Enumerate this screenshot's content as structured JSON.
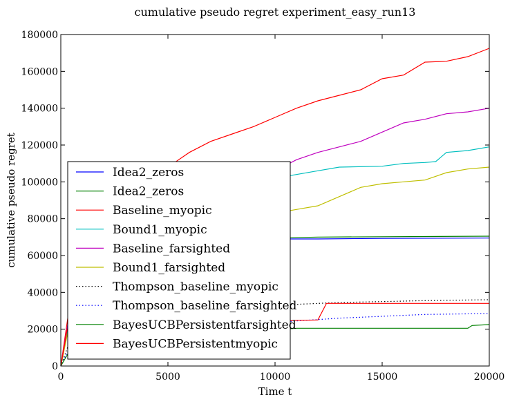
{
  "chart_data": {
    "type": "line",
    "title": "cumulative pseudo regret experiment_easy_run13",
    "xlabel": "Time t",
    "ylabel": "cumulative pseudo regret",
    "xlim": [
      0,
      20000
    ],
    "ylim": [
      0,
      180000
    ],
    "xticks": [
      "0",
      "5000",
      "10000",
      "15000",
      "20000"
    ],
    "yticks": [
      "0",
      "20000",
      "40000",
      "60000",
      "80000",
      "100000",
      "120000",
      "140000",
      "160000",
      "180000"
    ],
    "grid": false,
    "legend_position": "lower-left",
    "series": [
      {
        "name": "Idea2_zeros",
        "color": "#0000ff",
        "style": "solid",
        "x": [
          0,
          500,
          1500,
          3000,
          5000,
          7000,
          9000,
          10000,
          12000,
          15000,
          20000
        ],
        "y": [
          0,
          30000,
          45000,
          55000,
          62000,
          66000,
          68500,
          69000,
          69000,
          69300,
          69500
        ]
      },
      {
        "name": "Idea2_zeros",
        "color": "#008000",
        "style": "solid",
        "x": [
          0,
          500,
          1500,
          3000,
          5000,
          7000,
          9000,
          10000,
          12000,
          15000,
          20000
        ],
        "y": [
          0,
          30000,
          46000,
          56000,
          63000,
          67000,
          69000,
          69500,
          70000,
          70200,
          70500
        ]
      },
      {
        "name": "Baseline_myopic",
        "color": "#ff0000",
        "style": "solid",
        "x": [
          0,
          500,
          2000,
          4000,
          5000,
          6000,
          7000,
          8000,
          9000,
          10000,
          11000,
          12000,
          13000,
          14000,
          15000,
          16000,
          17000,
          18000,
          19000,
          20000
        ],
        "y": [
          0,
          40000,
          75000,
          98000,
          108000,
          116000,
          122000,
          126000,
          130000,
          135000,
          140000,
          144000,
          147000,
          150000,
          156000,
          158000,
          165000,
          165500,
          168000,
          172500
        ]
      },
      {
        "name": "Bound1_myopic",
        "color": "#00bfbf",
        "style": "solid",
        "x": [
          0,
          500,
          2000,
          4000,
          6000,
          8000,
          9500,
          10000,
          11000,
          12000,
          13000,
          15000,
          16000,
          17000,
          17500,
          18000,
          19000,
          20000
        ],
        "y": [
          0,
          30000,
          55000,
          75000,
          88000,
          97000,
          101000,
          102000,
          104000,
          106000,
          108000,
          108500,
          110000,
          110500,
          111000,
          116000,
          117000,
          119000
        ]
      },
      {
        "name": "Baseline_farsighted",
        "color": "#bf00bf",
        "style": "solid",
        "x": [
          0,
          500,
          2000,
          4000,
          6000,
          8000,
          10000,
          11000,
          12000,
          13000,
          14000,
          15000,
          16000,
          17000,
          18000,
          19000,
          20000
        ],
        "y": [
          0,
          35000,
          62000,
          82000,
          94000,
          101000,
          106000,
          112000,
          116000,
          119000,
          122000,
          127000,
          132000,
          134000,
          137000,
          138000,
          140000
        ]
      },
      {
        "name": "Bound1_farsighted",
        "color": "#bfbf00",
        "style": "solid",
        "x": [
          0,
          500,
          2000,
          4000,
          6000,
          8000,
          10000,
          11000,
          12000,
          13000,
          14000,
          15000,
          16000,
          17000,
          18000,
          19000,
          20000
        ],
        "y": [
          0,
          28000,
          50000,
          66000,
          75000,
          80000,
          83000,
          85000,
          87000,
          92000,
          97000,
          99000,
          100000,
          101000,
          105000,
          107000,
          108000
        ]
      },
      {
        "name": "Thompson_baseline_myopic",
        "color": "#000000",
        "style": "dotted",
        "x": [
          0,
          500,
          1500,
          3000,
          5000,
          7000,
          9000,
          11000,
          13000,
          15000,
          17000,
          20000
        ],
        "y": [
          0,
          16000,
          22000,
          26000,
          29000,
          31000,
          32500,
          33500,
          34500,
          35000,
          35500,
          36000
        ]
      },
      {
        "name": "Thompson_baseline_farsighted",
        "color": "#0000ff",
        "style": "dotted",
        "x": [
          0,
          500,
          1500,
          3000,
          5000,
          7000,
          9000,
          11000,
          13000,
          15000,
          17000,
          20000
        ],
        "y": [
          0,
          12000,
          16000,
          18500,
          20500,
          22000,
          23000,
          24500,
          26000,
          27000,
          28000,
          28500
        ]
      },
      {
        "name": "BayesUCBPersistentfarsighted",
        "color": "#008000",
        "style": "solid",
        "x": [
          0,
          500,
          1500,
          3000,
          5000,
          7000,
          9000,
          10500,
          11000,
          15000,
          19000,
          19200,
          20000
        ],
        "y": [
          0,
          10000,
          13000,
          15000,
          16500,
          18000,
          19500,
          20000,
          20500,
          20500,
          20500,
          22000,
          22500
        ]
      },
      {
        "name": "BayesUCBPersistentmyopic",
        "color": "#ff0000",
        "style": "solid",
        "x": [
          0,
          300,
          1000,
          2500,
          4000,
          6000,
          8000,
          10000,
          12000,
          12400,
          15000,
          20000
        ],
        "y": [
          0,
          20000,
          24000,
          24500,
          24500,
          24500,
          24500,
          24500,
          25000,
          34000,
          34000,
          34000
        ]
      }
    ]
  }
}
